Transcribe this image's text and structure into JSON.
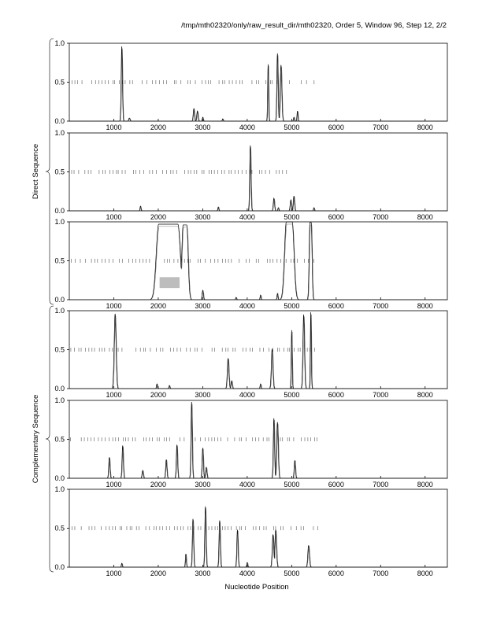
{
  "title": "/tmp/mth02320/only/raw_result_dir/mth02320, Order 5, Window 96, Step 12, 2/2",
  "colors": {
    "line": "#000000",
    "shade": "#bdbdbd",
    "frame": "#000000"
  },
  "groups": [
    {
      "label": "Direct Sequence",
      "panels": [
        0,
        1,
        2
      ]
    },
    {
      "label": "Complementary Sequence",
      "panels": [
        3,
        4,
        5
      ]
    }
  ],
  "chart_data": {
    "type": "line",
    "title": "/tmp/mth02320/only/raw_result_dir/mth02320, Order 5, Window 96, Step 12, 2/2",
    "xlabel": "Nucleotide Position",
    "ylabel": "",
    "xlim": [
      0,
      8500
    ],
    "ylim": [
      0,
      1.0
    ],
    "x_ticks": [
      1000,
      2000,
      3000,
      4000,
      5000,
      6000,
      7000,
      8000
    ],
    "y_ticks": [
      0.0,
      0.5,
      1.0
    ],
    "grid": false,
    "legend": "none",
    "panels": [
      {
        "name": "",
        "peaks": [
          {
            "x": 1180,
            "y": 0.96,
            "w": 20
          },
          {
            "x": 1350,
            "y": 0.04,
            "w": 20
          },
          {
            "x": 2800,
            "y": 0.16,
            "w": 20
          },
          {
            "x": 2880,
            "y": 0.13,
            "w": 20
          },
          {
            "x": 3000,
            "y": 0.05,
            "w": 15
          },
          {
            "x": 3450,
            "y": 0.03,
            "w": 15
          },
          {
            "x": 4470,
            "y": 0.73,
            "w": 15
          },
          {
            "x": 4680,
            "y": 0.87,
            "w": 20
          },
          {
            "x": 4760,
            "y": 0.72,
            "w": 25
          },
          {
            "x": 5050,
            "y": 0.05,
            "w": 15
          },
          {
            "x": 5130,
            "y": 0.13,
            "w": 15
          }
        ],
        "plateaus": [],
        "shaded": [],
        "ticks_range": [
          40,
          5520
        ],
        "ticks_step": 77
      },
      {
        "name": "",
        "peaks": [
          {
            "x": 1600,
            "y": 0.06,
            "w": 15
          },
          {
            "x": 3350,
            "y": 0.05,
            "w": 15
          },
          {
            "x": 4070,
            "y": 0.84,
            "w": 20
          },
          {
            "x": 4600,
            "y": 0.16,
            "w": 20
          },
          {
            "x": 4700,
            "y": 0.04,
            "w": 15
          },
          {
            "x": 4980,
            "y": 0.14,
            "w": 20
          },
          {
            "x": 5050,
            "y": 0.19,
            "w": 20
          },
          {
            "x": 5500,
            "y": 0.04,
            "w": 15
          }
        ],
        "plateaus": [],
        "shaded": [],
        "ticks_range": [
          40,
          5420
        ],
        "ticks_step": 77
      },
      {
        "name": "",
        "peaks": [
          {
            "x": 3000,
            "y": 0.12,
            "w": 20
          },
          {
            "x": 3750,
            "y": 0.03,
            "w": 15
          },
          {
            "x": 4300,
            "y": 0.06,
            "w": 15
          },
          {
            "x": 4680,
            "y": 0.08,
            "w": 15
          }
        ],
        "plateaus": [
          {
            "x0": 2010,
            "x1": 2440,
            "y": 0.97,
            "ramp": 80
          },
          {
            "x0": 2560,
            "x1": 2640,
            "y": 0.96,
            "ramp": 45
          },
          {
            "x0": 4880,
            "x1": 5010,
            "y": 1.0,
            "ramp": 60
          },
          {
            "x0": 5410,
            "x1": 5440,
            "y": 0.99,
            "ramp": 25
          }
        ],
        "shaded": [
          {
            "x0": 2030,
            "x1": 2480,
            "y0": 0.15,
            "y1": 0.29
          }
        ],
        "ticks_range": [
          40,
          5560
        ],
        "ticks_step": 77
      },
      {
        "name": "",
        "peaks": [
          {
            "x": 1030,
            "y": 0.96,
            "w": 30
          },
          {
            "x": 1970,
            "y": 0.06,
            "w": 15
          },
          {
            "x": 2250,
            "y": 0.04,
            "w": 15
          },
          {
            "x": 3570,
            "y": 0.39,
            "w": 25
          },
          {
            "x": 3650,
            "y": 0.1,
            "w": 20
          },
          {
            "x": 4300,
            "y": 0.06,
            "w": 15
          },
          {
            "x": 4560,
            "y": 0.51,
            "w": 25
          },
          {
            "x": 5000,
            "y": 0.75,
            "w": 15
          },
          {
            "x": 5270,
            "y": 0.95,
            "w": 25
          },
          {
            "x": 5430,
            "y": 0.98,
            "w": 15
          }
        ],
        "plateaus": [],
        "shaded": [],
        "ticks_range": [
          40,
          5520
        ],
        "ticks_step": 77
      },
      {
        "name": "",
        "peaks": [
          {
            "x": 900,
            "y": 0.27,
            "w": 20
          },
          {
            "x": 1200,
            "y": 0.42,
            "w": 20
          },
          {
            "x": 1650,
            "y": 0.1,
            "w": 20
          },
          {
            "x": 2180,
            "y": 0.24,
            "w": 20
          },
          {
            "x": 2420,
            "y": 0.43,
            "w": 20
          },
          {
            "x": 2750,
            "y": 0.98,
            "w": 20
          },
          {
            "x": 3000,
            "y": 0.39,
            "w": 20
          },
          {
            "x": 3080,
            "y": 0.14,
            "w": 20
          },
          {
            "x": 4600,
            "y": 0.77,
            "w": 20
          },
          {
            "x": 4680,
            "y": 0.72,
            "w": 25
          },
          {
            "x": 5070,
            "y": 0.23,
            "w": 20
          }
        ],
        "plateaus": [],
        "shaded": [],
        "ticks_range": [
          40,
          5620
        ],
        "ticks_step": 77
      },
      {
        "name": "",
        "peaks": [
          {
            "x": 1180,
            "y": 0.05,
            "w": 15
          },
          {
            "x": 2620,
            "y": 0.17,
            "w": 15
          },
          {
            "x": 2780,
            "y": 0.62,
            "w": 20
          },
          {
            "x": 3060,
            "y": 0.78,
            "w": 20
          },
          {
            "x": 3380,
            "y": 0.6,
            "w": 20
          },
          {
            "x": 3780,
            "y": 0.48,
            "w": 20
          },
          {
            "x": 4000,
            "y": 0.06,
            "w": 15
          },
          {
            "x": 4580,
            "y": 0.42,
            "w": 25
          },
          {
            "x": 4640,
            "y": 0.48,
            "w": 25
          },
          {
            "x": 5380,
            "y": 0.28,
            "w": 25
          }
        ],
        "plateaus": [],
        "shaded": [],
        "ticks_range": [
          40,
          5620
        ],
        "ticks_step": 77
      }
    ]
  }
}
